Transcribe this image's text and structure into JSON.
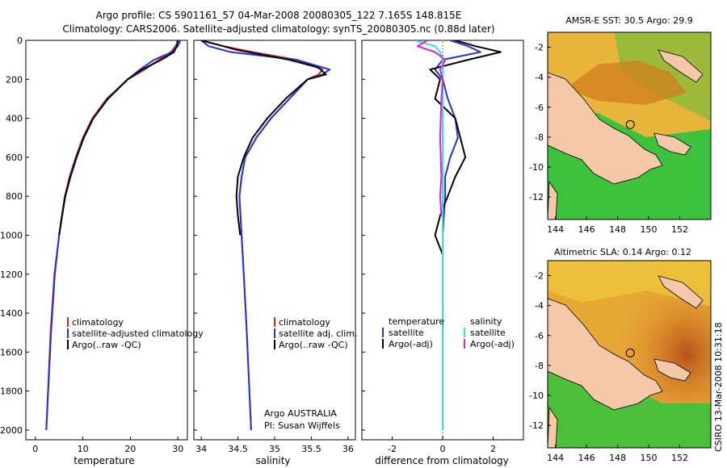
{
  "title_line1": "Argo profile: CS 5901161_57 04-Mar-2008 20080305_122 7.165S 148.815E",
  "title_line2": "Climatology: CARS2006. Satellite-adjusted climatology: synTS_20080305.nc (0.88d later)",
  "stamp": "CSIRO 13-Mar-2008 10:31:18",
  "colors": {
    "red": "#dd2222",
    "blue": "#2233dd",
    "black": "#000000",
    "cyan": "#33ddee",
    "magenta": "#dd22cc",
    "land": "#f5c8a8"
  },
  "chart_data": [
    {
      "type": "line",
      "id": "temperature",
      "xlabel": "temperature",
      "ylabel": "",
      "xlim": [
        -2,
        32
      ],
      "ylim": [
        2050,
        0
      ],
      "xticks": [
        0,
        10,
        20,
        30
      ],
      "yticks": [
        0,
        200,
        400,
        600,
        800,
        1000,
        1200,
        1400,
        1600,
        1800,
        2000
      ],
      "legend": [
        "climatology",
        "satellite-adjusted climatology",
        "Argo(..raw -QC)"
      ],
      "series": [
        {
          "name": "climatology",
          "color": "red",
          "depth": [
            0,
            30,
            60,
            100,
            150,
            200,
            300,
            400,
            500,
            600,
            700,
            800,
            1000,
            1200,
            1500,
            2000
          ],
          "values": [
            30.2,
            29.5,
            28.5,
            26.0,
            23.0,
            19.5,
            15.0,
            12.0,
            10.0,
            8.5,
            7.2,
            6.2,
            5.0,
            4.0,
            3.2,
            2.3
          ]
        },
        {
          "name": "satellite",
          "color": "blue",
          "depth": [
            0,
            30,
            60,
            100,
            150,
            200,
            300,
            400,
            500,
            600,
            700,
            800,
            1000,
            1200,
            1500,
            2000
          ],
          "values": [
            30.5,
            30.0,
            28.8,
            25.0,
            22.0,
            19.5,
            15.2,
            12.2,
            10.1,
            8.6,
            7.3,
            6.3,
            5.0,
            4.1,
            3.3,
            2.3
          ]
        },
        {
          "name": "Argo",
          "color": "black",
          "depth": [
            0,
            10,
            30,
            60,
            100,
            150,
            200,
            300,
            400,
            500,
            600,
            700,
            800,
            900,
            1000
          ],
          "values": [
            29.9,
            29.9,
            29.7,
            29.2,
            26.5,
            22.5,
            19.4,
            15.3,
            12.2,
            10.2,
            8.7,
            7.4,
            6.3,
            5.6,
            5.0
          ]
        }
      ]
    },
    {
      "type": "line",
      "id": "salinity",
      "xlabel": "salinity",
      "xlim": [
        33.9,
        36.1
      ],
      "ylim": [
        2050,
        0
      ],
      "xticks": [
        34,
        34.5,
        35,
        35.5,
        36
      ],
      "legend": [
        "climatology",
        "satellite adj. clim.",
        "Argo(..raw -QC)"
      ],
      "annotation_line1": "Argo AUSTRALIA",
      "annotation_line2": "PI: Susan Wijffels",
      "series": [
        {
          "name": "climatology",
          "color": "red",
          "depth": [
            0,
            30,
            60,
            100,
            150,
            175,
            200,
            300,
            400,
            500,
            600,
            700,
            800,
            1000,
            1200,
            1500,
            2000
          ],
          "values": [
            34.0,
            34.3,
            34.7,
            35.3,
            35.65,
            35.6,
            35.45,
            35.2,
            34.95,
            34.75,
            34.6,
            34.55,
            34.52,
            34.55,
            34.58,
            34.62,
            34.68
          ]
        },
        {
          "name": "satellite",
          "color": "blue",
          "depth": [
            0,
            30,
            60,
            100,
            150,
            175,
            200,
            300,
            400,
            500,
            600,
            700,
            800,
            1000,
            1200,
            1500,
            2000
          ],
          "values": [
            34.0,
            34.1,
            34.4,
            35.3,
            35.75,
            35.65,
            35.45,
            35.2,
            34.95,
            34.75,
            34.6,
            34.55,
            34.52,
            34.55,
            34.58,
            34.62,
            34.68
          ]
        },
        {
          "name": "Argo",
          "color": "black",
          "depth": [
            0,
            20,
            50,
            100,
            140,
            175,
            200,
            300,
            400,
            500,
            600,
            700,
            800,
            900,
            1000
          ],
          "values": [
            34.0,
            34.2,
            34.5,
            35.2,
            35.6,
            35.7,
            35.45,
            35.15,
            34.9,
            34.7,
            34.58,
            34.5,
            34.48,
            34.5,
            34.53
          ]
        }
      ]
    },
    {
      "type": "line",
      "id": "difference",
      "xlabel": "difference from climatology",
      "xlim": [
        -3.2,
        3.2
      ],
      "ylim": [
        2050,
        0
      ],
      "xticks": [
        -2,
        0,
        2
      ],
      "legend_left_title": "temperature",
      "legend_right_title": "salinity",
      "legend": [
        "satellite",
        "Argo(-adj)",
        "satellite",
        "Argo(-adj)"
      ],
      "series": [
        {
          "name": "temp satellite",
          "color": "blue",
          "depth": [
            0,
            30,
            60,
            100,
            150,
            200,
            300,
            400,
            500,
            600,
            700,
            800,
            1000,
            1400,
            2000
          ],
          "values": [
            0.3,
            1.0,
            1.5,
            0.0,
            -0.3,
            0.0,
            0.2,
            0.5,
            0.6,
            0.3,
            0.1,
            0.1,
            0.0,
            0.0,
            0.0
          ]
        },
        {
          "name": "temp Argo",
          "color": "black",
          "depth": [
            0,
            30,
            60,
            100,
            150,
            200,
            300,
            400,
            500,
            600,
            700,
            800,
            900,
            1000,
            1100
          ],
          "values": [
            0.5,
            1.3,
            2.3,
            1.0,
            -0.5,
            -0.1,
            -0.3,
            0.5,
            0.7,
            0.9,
            0.5,
            0.2,
            -0.1,
            -0.3,
            0.0
          ]
        },
        {
          "name": "sal satellite",
          "color": "cyan",
          "depth": [
            0,
            30,
            60,
            100,
            150,
            200,
            300,
            400,
            600,
            800,
            1000,
            1400,
            2000
          ],
          "values": [
            -1.1,
            -0.3,
            -0.1,
            0.0,
            0.0,
            0.0,
            0.0,
            0.0,
            0.0,
            0.0,
            0.0,
            0.0,
            0.0
          ]
        },
        {
          "name": "sal Argo",
          "color": "magenta",
          "depth": [
            0,
            30,
            60,
            100,
            150,
            200,
            300,
            500,
            700,
            800,
            900
          ],
          "values": [
            -0.6,
            -1.0,
            -0.3,
            0.1,
            -0.1,
            0.0,
            -0.05,
            -0.1,
            -0.05,
            -0.1,
            -0.05
          ]
        }
      ]
    },
    {
      "type": "heatmap",
      "id": "sst-map",
      "title": "AMSR-E SST: 30.5 Argo: 29.9",
      "xlim": [
        143.5,
        154
      ],
      "ylim": [
        -13.5,
        -1
      ],
      "xticks": [
        144,
        146,
        148,
        150,
        152
      ],
      "yticks": [
        -2,
        -4,
        -6,
        -8,
        -10,
        -12
      ],
      "argo_lon": 148.815,
      "argo_lat": -7.165
    },
    {
      "type": "heatmap",
      "id": "sla-map",
      "title": "Altimetric SLA: 0.14 Argo: 0.12",
      "xlim": [
        143.5,
        154
      ],
      "ylim": [
        -13.5,
        -1
      ],
      "xticks": [
        144,
        146,
        148,
        150,
        152
      ],
      "yticks": [
        -2,
        -4,
        -6,
        -8,
        -10,
        -12
      ],
      "argo_lon": 148.815,
      "argo_lat": -7.165
    }
  ]
}
